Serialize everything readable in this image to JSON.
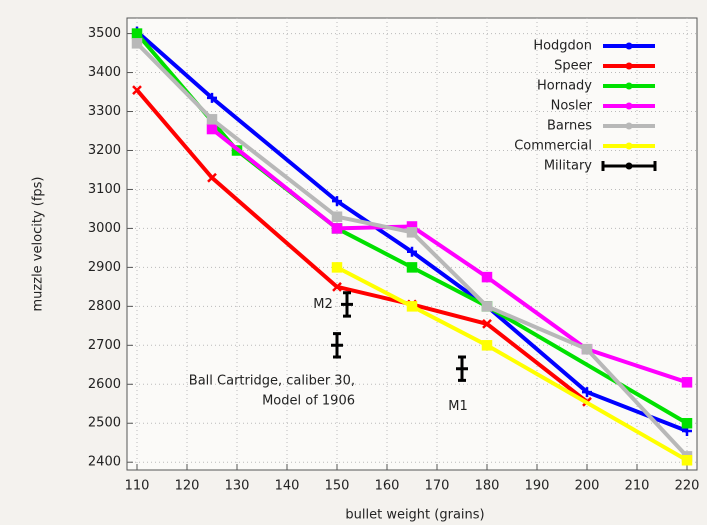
{
  "chart_data": {
    "type": "line",
    "xlabel": "bullet weight (grains)",
    "ylabel": "muzzle velocity (fps)",
    "xlim": [
      108,
      222
    ],
    "ylim": [
      2380,
      3540
    ],
    "xticks": [
      110,
      120,
      130,
      140,
      150,
      160,
      170,
      180,
      190,
      200,
      210,
      220
    ],
    "yticks": [
      2400,
      2500,
      2600,
      2700,
      2800,
      2900,
      3000,
      3100,
      3200,
      3300,
      3400,
      3500
    ],
    "grid": true,
    "legend": "top-right",
    "series": [
      {
        "name": "Hodgdon",
        "color": "#0000ff",
        "marker": "plus",
        "x": [
          110,
          125,
          150,
          165,
          180,
          200,
          220
        ],
        "values": [
          3505,
          3335,
          3070,
          2940,
          2800,
          2580,
          2480
        ]
      },
      {
        "name": "Speer",
        "color": "#ff0000",
        "marker": "cross",
        "x": [
          110,
          125,
          150,
          165,
          180,
          200
        ],
        "values": [
          3355,
          3130,
          2850,
          2805,
          2755,
          2555
        ]
      },
      {
        "name": "Hornady",
        "color": "#00e000",
        "marker": "square",
        "x": [
          110,
          130,
          150,
          165,
          180,
          220
        ],
        "values": [
          3500,
          3200,
          3000,
          2900,
          2800,
          2500
        ]
      },
      {
        "name": "Nosler",
        "color": "#ff00ff",
        "marker": "square",
        "x": [
          125,
          150,
          165,
          180,
          200,
          220
        ],
        "values": [
          3255,
          3000,
          3005,
          2875,
          2690,
          2605
        ]
      },
      {
        "name": "Barnes",
        "color": "#b8b8b8",
        "marker": "square",
        "x": [
          110,
          125,
          150,
          165,
          180,
          200,
          220
        ],
        "values": [
          3475,
          3280,
          3030,
          2990,
          2800,
          2690,
          2415
        ]
      },
      {
        "name": "Commercial",
        "color": "#ffff00",
        "marker": "square",
        "x": [
          150,
          165,
          180,
          220
        ],
        "values": [
          2900,
          2800,
          2700,
          2405
        ]
      },
      {
        "name": "Military",
        "color": "#000000",
        "marker": "errorbar",
        "x": [
          150,
          152,
          175
        ],
        "values": [
          2700,
          2805,
          2640
        ],
        "yerr": [
          30,
          30,
          30
        ]
      }
    ],
    "annotations": [
      "M2",
      "M1",
      "Ball Cartridge, caliber 30,",
      "Model of 1906"
    ]
  }
}
